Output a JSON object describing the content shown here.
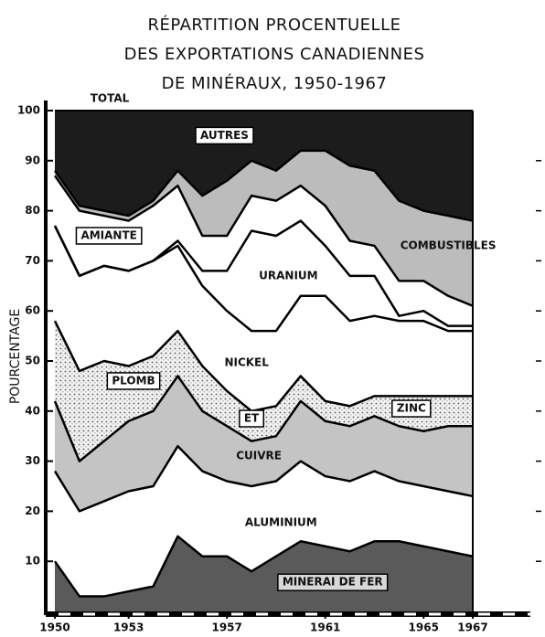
{
  "chart_data": {
    "type": "stacked_area",
    "title": [
      "RÉPARTITION PROCENTUELLE",
      "DES EXPORTATIONS CANADIENNES",
      "DE MINÉRAUX,  1950-1967"
    ],
    "ylabel": "POURCENTAGE",
    "annotation": "TOTAL",
    "x": [
      1950,
      1951,
      1952,
      1953,
      1954,
      1955,
      1956,
      1957,
      1958,
      1959,
      1960,
      1961,
      1962,
      1963,
      1964,
      1965,
      1966,
      1967
    ],
    "xlim": [
      1950,
      1967
    ],
    "xticks": [
      1950,
      1953,
      1957,
      1961,
      1965,
      1967
    ],
    "ylim": [
      0,
      100
    ],
    "yticks": [
      10,
      20,
      30,
      40,
      50,
      60,
      70,
      80,
      90,
      100
    ],
    "series": [
      {
        "name": "MINERAI DE FER",
        "color": "#5a5a5a",
        "values": [
          10,
          3,
          3,
          4,
          5,
          15,
          11,
          11,
          8,
          11,
          14,
          13,
          12,
          14,
          14,
          13,
          12,
          11
        ]
      },
      {
        "name": "ALUMINIUM",
        "color": "#ffffff",
        "values": [
          18,
          17,
          19,
          20,
          20,
          18,
          17,
          15,
          17,
          15,
          16,
          14,
          14,
          14,
          12,
          12,
          12,
          12
        ]
      },
      {
        "name": "CUIVRE",
        "color": "#c4c4c4",
        "values": [
          14,
          10,
          12,
          14,
          15,
          14,
          12,
          11,
          9,
          9,
          12,
          11,
          11,
          11,
          11,
          11,
          13,
          14
        ]
      },
      {
        "labels": [
          "PLOMB",
          "ET",
          "ZINC"
        ],
        "color": "dotted",
        "values": [
          16,
          18,
          16,
          11,
          11,
          9,
          9,
          7,
          6,
          6,
          5,
          4,
          4,
          4,
          6,
          7,
          6,
          6
        ]
      },
      {
        "name": "NICKEL",
        "color": "#ffffff",
        "values": [
          19,
          19,
          19,
          19,
          19,
          17,
          16,
          16,
          16,
          15,
          16,
          21,
          17,
          16,
          15,
          15,
          13,
          13
        ]
      },
      {
        "name": "URANIUM",
        "color": "#ffffff",
        "values": [
          0,
          0,
          0,
          0,
          0,
          1,
          3,
          8,
          20,
          19,
          15,
          10,
          9,
          8,
          1,
          2,
          1,
          1
        ]
      },
      {
        "name": "AMIANTE",
        "color": "#ffffff",
        "values": [
          10,
          13,
          10,
          10,
          11,
          11,
          7,
          7,
          7,
          7,
          7,
          8,
          7,
          6,
          7,
          6,
          6,
          4
        ]
      },
      {
        "name": "COMBUSTIBLES",
        "color": "#bcbcbc",
        "values": [
          1,
          1,
          1,
          1,
          1,
          3,
          8,
          11,
          7,
          6,
          7,
          11,
          15,
          15,
          16,
          14,
          16,
          17
        ]
      },
      {
        "name": "AUTRES",
        "color": "#1c1c1c",
        "values": [
          12,
          19,
          20,
          21,
          18,
          12,
          17,
          14,
          10,
          12,
          8,
          8,
          11,
          12,
          18,
          20,
          21,
          22
        ]
      }
    ]
  }
}
